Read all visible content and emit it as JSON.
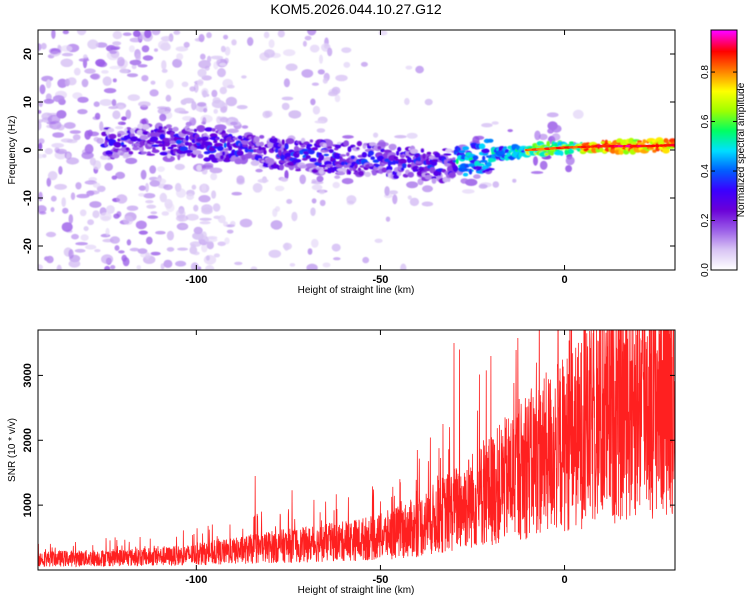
{
  "title": "KOM5.2026.044.10.27.G12",
  "chart_data": [
    {
      "type": "heatmap",
      "xlabel": "Height of straight line (km)",
      "ylabel": "Frequency (Hz)",
      "xlim": [
        -143,
        30
      ],
      "ylim": [
        -25,
        25
      ],
      "xticks": [
        -100,
        -50,
        0
      ],
      "yticks": [
        -20,
        -10,
        0,
        10,
        20
      ],
      "colorbar": {
        "label": "Normalized spectral amplitude",
        "range": [
          0,
          0.97
        ],
        "ticks": [
          0.0,
          0.2,
          0.4,
          0.6,
          0.8
        ],
        "colormap": [
          "#ffffff",
          "#d8c4f4",
          "#9a5ce8",
          "#6a00d8",
          "#3a00ff",
          "#0060ff",
          "#00e0ff",
          "#00ff60",
          "#a0ff00",
          "#ffff00",
          "#ff8000",
          "#ff0000",
          "#ff00ff"
        ]
      },
      "ridge": [
        {
          "x": -125,
          "f": 1.5
        },
        {
          "x": -110,
          "f": 2
        },
        {
          "x": -95,
          "f": 1
        },
        {
          "x": -80,
          "f": -0.5
        },
        {
          "x": -65,
          "f": -1.5
        },
        {
          "x": -50,
          "f": -2
        },
        {
          "x": -35,
          "f": -3.5
        },
        {
          "x": -28,
          "f": -2.5
        },
        {
          "x": -20,
          "f": -1
        },
        {
          "x": -10,
          "f": 0
        },
        {
          "x": 0,
          "f": 0.5
        },
        {
          "x": 10,
          "f": 0.8
        },
        {
          "x": 20,
          "f": 0.8
        },
        {
          "x": 30,
          "f": 1
        }
      ]
    },
    {
      "type": "line",
      "xlabel": "Height of straight line (km)",
      "ylabel": "SNR (10 * v/v)",
      "xlim": [
        -143,
        30
      ],
      "ylim": [
        0,
        3700
      ],
      "xticks": [
        -100,
        -50,
        0
      ],
      "yticks": [
        1000,
        2000,
        3000
      ],
      "color": "#ff2020",
      "envelope": [
        {
          "x": -143,
          "y": 200
        },
        {
          "x": -125,
          "y": 220
        },
        {
          "x": -110,
          "y": 240
        },
        {
          "x": -100,
          "y": 280
        },
        {
          "x": -90,
          "y": 340
        },
        {
          "x": -80,
          "y": 420
        },
        {
          "x": -70,
          "y": 460
        },
        {
          "x": -60,
          "y": 520
        },
        {
          "x": -50,
          "y": 600
        },
        {
          "x": -40,
          "y": 780
        },
        {
          "x": -30,
          "y": 1100
        },
        {
          "x": -20,
          "y": 1450
        },
        {
          "x": -10,
          "y": 1900
        },
        {
          "x": 0,
          "y": 2300
        },
        {
          "x": 10,
          "y": 2700
        },
        {
          "x": 20,
          "y": 3050
        },
        {
          "x": 30,
          "y": 3350
        }
      ],
      "spikes": [
        {
          "x": -84,
          "y": 1450
        },
        {
          "x": -74,
          "y": 1230
        },
        {
          "x": -40,
          "y": 1850
        },
        {
          "x": -33,
          "y": 2250
        },
        {
          "x": -30,
          "y": 3500
        },
        {
          "x": -28.5,
          "y": 3400
        },
        {
          "x": -22,
          "y": 2000
        },
        {
          "x": -20,
          "y": 3300
        },
        {
          "x": -10,
          "y": 2520
        },
        {
          "x": 11,
          "y": 3180
        },
        {
          "x": 12,
          "y": 2450
        },
        {
          "x": 19,
          "y": 3480
        }
      ]
    }
  ]
}
